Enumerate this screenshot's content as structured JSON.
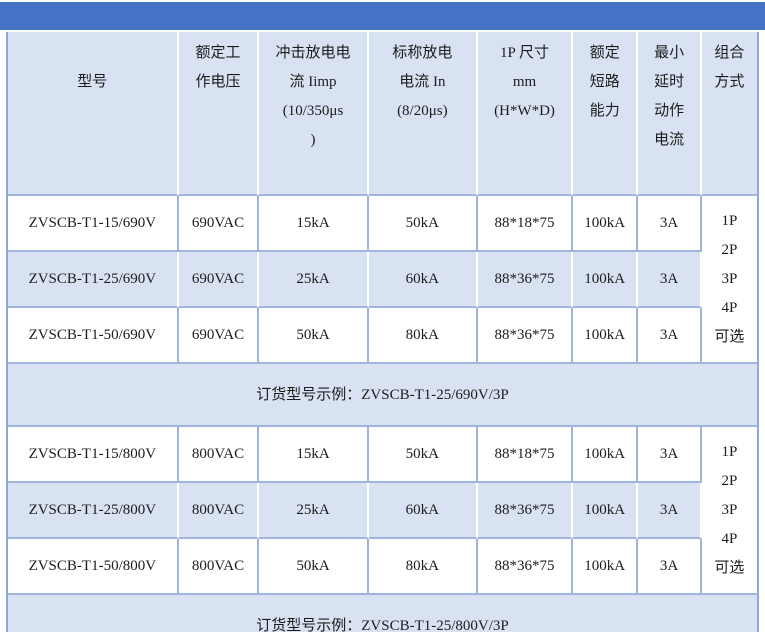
{
  "colors": {
    "accent_bar": "#4472C4",
    "row_shading": "#D9E2F3",
    "grid_border": "#9FB5DE",
    "outer_border": "#8EAADB",
    "text": "#1c1c1c"
  },
  "table": {
    "headers": {
      "model": "型号",
      "voltage": "额定工\n作电压",
      "iimp": "冲击放电电\n流 Iimp\n(10/350μs\n)",
      "inom": "标称放电\n电流 In\n(8/20μs)",
      "size": "1P 尺寸\nmm\n(H*W*D)",
      "short_circuit": "额定\n短路\n能力",
      "min_delay": "最小\n延时\n动作\n电流",
      "combo": "组合\n方式"
    },
    "sections": [
      {
        "rows": [
          {
            "model": "ZVSCB-T1-15/690V",
            "voltage": "690VAC",
            "iimp": "15kA",
            "inom": "50kA",
            "size": "88*18*75",
            "short_circuit": "100kA",
            "min_delay": "3A"
          },
          {
            "model": "ZVSCB-T1-25/690V",
            "voltage": "690VAC",
            "iimp": "25kA",
            "inom": "60kA",
            "size": "88*36*75",
            "short_circuit": "100kA",
            "min_delay": "3A"
          },
          {
            "model": "ZVSCB-T1-50/690V",
            "voltage": "690VAC",
            "iimp": "50kA",
            "inom": "80kA",
            "size": "88*36*75",
            "short_circuit": "100kA",
            "min_delay": "3A"
          }
        ],
        "combo_options": "1P\n2P\n3P\n4P\n可选",
        "order_example": "订货型号示例：ZVSCB-T1-25/690V/3P"
      },
      {
        "rows": [
          {
            "model": "ZVSCB-T1-15/800V",
            "voltage": "800VAC",
            "iimp": "15kA",
            "inom": "50kA",
            "size": "88*18*75",
            "short_circuit": "100kA",
            "min_delay": "3A"
          },
          {
            "model": "ZVSCB-T1-25/800V",
            "voltage": "800VAC",
            "iimp": "25kA",
            "inom": "60kA",
            "size": "88*36*75",
            "short_circuit": "100kA",
            "min_delay": "3A"
          },
          {
            "model": "ZVSCB-T1-50/800V",
            "voltage": "800VAC",
            "iimp": "50kA",
            "inom": "80kA",
            "size": "88*36*75",
            "short_circuit": "100kA",
            "min_delay": "3A"
          }
        ],
        "combo_options": "1P\n2P\n3P\n4P\n可选",
        "order_example": "订货型号示例：ZVSCB-T1-25/800V/3P"
      }
    ]
  }
}
